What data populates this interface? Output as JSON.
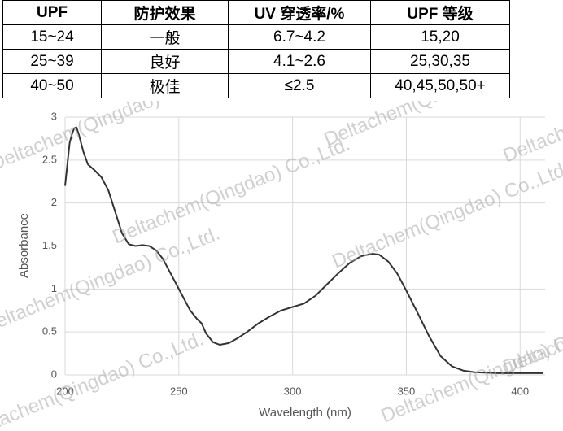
{
  "table": {
    "header": [
      "UPF",
      "防护效果",
      "UV 穿透率/%",
      "UPF 等级"
    ],
    "rows": [
      [
        "15~24",
        "一般",
        "6.7~4.2",
        "15,20"
      ],
      [
        "25~39",
        "良好",
        "4.1~2.6",
        "25,30,35"
      ],
      [
        "40~50",
        "极佳",
        "≤2.5",
        "40,45,50,50+"
      ]
    ]
  },
  "chart_data": {
    "type": "line",
    "xlabel": "Wavelength (nm)",
    "ylabel": "Absorbance",
    "color": "#333333",
    "grid": true,
    "xlim": [
      200,
      411
    ],
    "ylim": [
      0,
      3
    ],
    "xticks": [
      200,
      250,
      300,
      350,
      400
    ],
    "yticks": [
      0,
      0.5,
      1,
      1.5,
      2,
      2.5,
      3
    ],
    "x": [
      200,
      201,
      202,
      203,
      204,
      205,
      206,
      207,
      208,
      210,
      213,
      216,
      219,
      222,
      225,
      228,
      231,
      234,
      237,
      240,
      243,
      246,
      249,
      252,
      255,
      258,
      260,
      262,
      265,
      268,
      272,
      276,
      280,
      285,
      290,
      295,
      300,
      305,
      310,
      315,
      320,
      325,
      330,
      335,
      338,
      342,
      346,
      350,
      355,
      360,
      365,
      370,
      375,
      380,
      390,
      400,
      410
    ],
    "values": [
      2.2,
      2.45,
      2.7,
      2.8,
      2.87,
      2.88,
      2.8,
      2.7,
      2.6,
      2.45,
      2.38,
      2.3,
      2.15,
      1.9,
      1.65,
      1.52,
      1.5,
      1.51,
      1.5,
      1.45,
      1.35,
      1.2,
      1.05,
      0.9,
      0.75,
      0.65,
      0.6,
      0.48,
      0.38,
      0.35,
      0.37,
      0.43,
      0.5,
      0.6,
      0.68,
      0.75,
      0.79,
      0.83,
      0.92,
      1.05,
      1.18,
      1.3,
      1.38,
      1.41,
      1.4,
      1.32,
      1.18,
      0.98,
      0.72,
      0.45,
      0.22,
      0.1,
      0.05,
      0.03,
      0.02,
      0.02,
      0.02
    ]
  },
  "watermark": "Deltachem(Qingdao) Co.,Ltd."
}
